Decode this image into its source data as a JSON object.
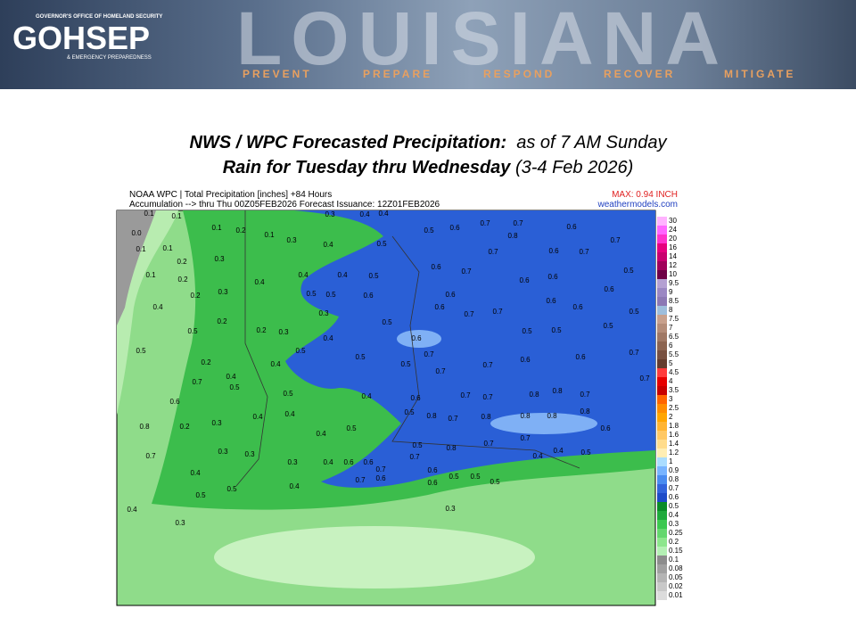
{
  "header": {
    "agency_line": "GOVERNOR'S OFFICE OF HOMELAND SECURITY",
    "logo": "GOHSEP",
    "agency_sub": "& EMERGENCY PREPAREDNESS",
    "state": "LOUISIANA",
    "taglines": [
      "PREVENT",
      "PREPARE",
      "RESPOND",
      "RECOVER",
      "MITIGATE"
    ]
  },
  "title": {
    "line1_bold": "NWS / WPC Forecasted Precipitation:",
    "line1_rest": "as of 7 AM Sunday",
    "line2_bold": "Rain for Tuesday thru Wednesday",
    "line2_rest": "(3-4 Feb 2026)"
  },
  "map": {
    "header_line1": "NOAA WPC | Total Precipitation [inches] +84 Hours",
    "header_line2": "Accumulation --> thru Thu 00Z05FEB2026   Forecast Issuance: 12Z01FEB2026",
    "max_label": "MAX: 0.94 INCH",
    "source": "weathermodels.com",
    "labels": [
      "0.1",
      "0.1",
      "0.0",
      "0.1",
      "0.2",
      "0.1",
      "0.3",
      "0.3",
      "0.4",
      "0.4",
      "0.4",
      "0.5",
      "0.5",
      "0.6",
      "0.7",
      "0.7",
      "0.8",
      "0.6",
      "0.7",
      "0.1",
      "0.1",
      "0.2",
      "0.3",
      "0.2",
      "0.1",
      "0.2",
      "0.3",
      "0.4",
      "0.4",
      "0.4",
      "0.5",
      "0.6",
      "0.7",
      "0.7",
      "0.6",
      "0.7",
      "0.5",
      "0.5",
      "0.5",
      "0.6",
      "0.6",
      "0.6",
      "0.6",
      "0.6",
      "0.4",
      "0.2",
      "0.3",
      "0.5",
      "0.6",
      "0.7",
      "0.7",
      "0.6",
      "0.6",
      "0.5",
      "0.5",
      "0.2",
      "0.3",
      "0.4",
      "0.6",
      "0.5",
      "0.5",
      "0.5",
      "0.5",
      "0.2",
      "0.4",
      "0.5",
      "0.5",
      "0.5",
      "0.7",
      "0.7",
      "0.6",
      "0.6",
      "0.7",
      "0.7",
      "0.4",
      "0.5",
      "0.5",
      "0.4",
      "0.6",
      "0.7",
      "0.7",
      "0.7",
      "0.8",
      "0.8",
      "0.7",
      "0.7",
      "0.6",
      "0.3",
      "0.4",
      "0.4",
      "0.5",
      "0.8",
      "0.7",
      "0.8",
      "0.8",
      "0.8",
      "0.8",
      "0.6",
      "0.8",
      "0.2",
      "0.4",
      "0.5",
      "0.5",
      "0.7",
      "0.8",
      "0.7",
      "0.7",
      "0.7",
      "0.3",
      "0.3",
      "0.4",
      "0.6",
      "0.6",
      "0.7",
      "0.7",
      "0.6",
      "0.6",
      "0.6",
      "0.5",
      "0.5",
      "0.5",
      "0.4",
      "0.4",
      "0.5",
      "0.4",
      "0.5",
      "0.5",
      "0.4",
      "0.4",
      "0.3",
      "0.3",
      "0.3",
      "0.3"
    ]
  },
  "legend": {
    "labels": [
      "30",
      "24",
      "20",
      "16",
      "14",
      "12",
      "10",
      "9.5",
      "9",
      "8.5",
      "8",
      "7.5",
      "7",
      "6.5",
      "6",
      "5.5",
      "5",
      "4.5",
      "4",
      "3.5",
      "3",
      "2.5",
      "2",
      "1.8",
      "1.6",
      "1.4",
      "1.2",
      "1",
      "0.9",
      "0.8",
      "0.7",
      "0.6",
      "0.5",
      "0.4",
      "0.3",
      "0.25",
      "0.2",
      "0.15",
      "0.1",
      "0.08",
      "0.05",
      "0.02",
      "0.01"
    ],
    "colors": [
      "#ffb3ff",
      "#ff66ff",
      "#ff33cc",
      "#e6007e",
      "#c8006e",
      "#a0005a",
      "#6e0046",
      "#b4a0d2",
      "#9b87c3",
      "#8c78b4",
      "#9ebedc",
      "#c8a08c",
      "#b48c78",
      "#a07864",
      "#8c6450",
      "#785040",
      "#643c2d",
      "#ff3c3c",
      "#e60000",
      "#c80000",
      "#ff6400",
      "#ff8c00",
      "#ffa500",
      "#ffb432",
      "#ffc864",
      "#ffdc8c",
      "#ffeeb4",
      "#aaddff",
      "#78b4ff",
      "#4a8cf0",
      "#3264dc",
      "#1e4bc8",
      "#0a8c28",
      "#1eaa3c",
      "#3cc850",
      "#64d76e",
      "#8ce68c",
      "#b4f0b4",
      "#8c8c8c",
      "#a0a0a0",
      "#b4b4b4",
      "#c8c8c8",
      "#dcdcdc"
    ]
  }
}
